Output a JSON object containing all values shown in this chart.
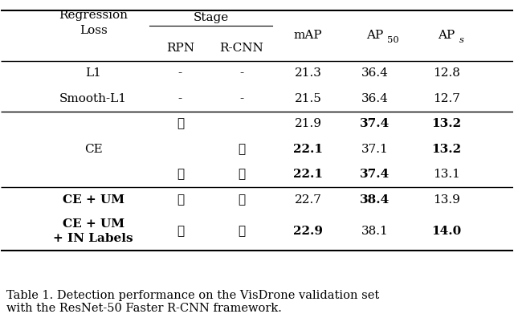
{
  "title": "Table 1. Detection performance on the VisDrone validation set\nwith the ResNet-50 Faster R-CNN framework.",
  "col_headers": [
    "Regression\nLoss",
    "RPN",
    "R-CNN",
    "mAP",
    "AP$_{50}$",
    "AP$_s$"
  ],
  "stage_header": "Stage",
  "rows": [
    {
      "loss": "L1",
      "rpn": "-",
      "rcnn": "-",
      "map": "21.3",
      "ap50": "36.4",
      "aps": "12.8",
      "bold_map": false,
      "bold_ap50": false,
      "bold_aps": false
    },
    {
      "loss": "Smooth-L1",
      "rpn": "-",
      "rcnn": "-",
      "map": "21.5",
      "ap50": "36.4",
      "aps": "12.7",
      "bold_map": false,
      "bold_ap50": false,
      "bold_aps": false
    },
    {
      "loss": "CE",
      "rpn": "✓",
      "rcnn": "",
      "map": "21.9",
      "ap50": "37.4",
      "aps": "13.2",
      "bold_map": false,
      "bold_ap50": true,
      "bold_aps": true
    },
    {
      "loss": "CE",
      "rpn": "",
      "rcnn": "✓",
      "map": "22.1",
      "ap50": "37.1",
      "aps": "13.2",
      "bold_map": true,
      "bold_ap50": false,
      "bold_aps": true
    },
    {
      "loss": "CE",
      "rpn": "✓",
      "rcnn": "✓",
      "map": "22.1",
      "ap50": "37.4",
      "aps": "13.1",
      "bold_map": true,
      "bold_ap50": true,
      "bold_aps": false
    },
    {
      "loss": "CE + UM",
      "rpn": "✓",
      "rcnn": "✓",
      "map": "22.7",
      "ap50": "38.4",
      "aps": "13.9",
      "bold_map": false,
      "bold_ap50": true,
      "bold_aps": false
    },
    {
      "loss": "CE + UM\n+ IN Labels",
      "rpn": "✓",
      "rcnn": "✓",
      "map": "22.9",
      "ap50": "38.1",
      "aps": "14.0",
      "bold_map": true,
      "bold_ap50": false,
      "bold_aps": true
    }
  ],
  "bold_loss_rows": [
    5,
    6
  ],
  "group_separators": [
    2,
    5
  ],
  "bg_color": "#ffffff",
  "text_color": "#000000",
  "fontsize": 11,
  "caption_fontsize": 10.5
}
